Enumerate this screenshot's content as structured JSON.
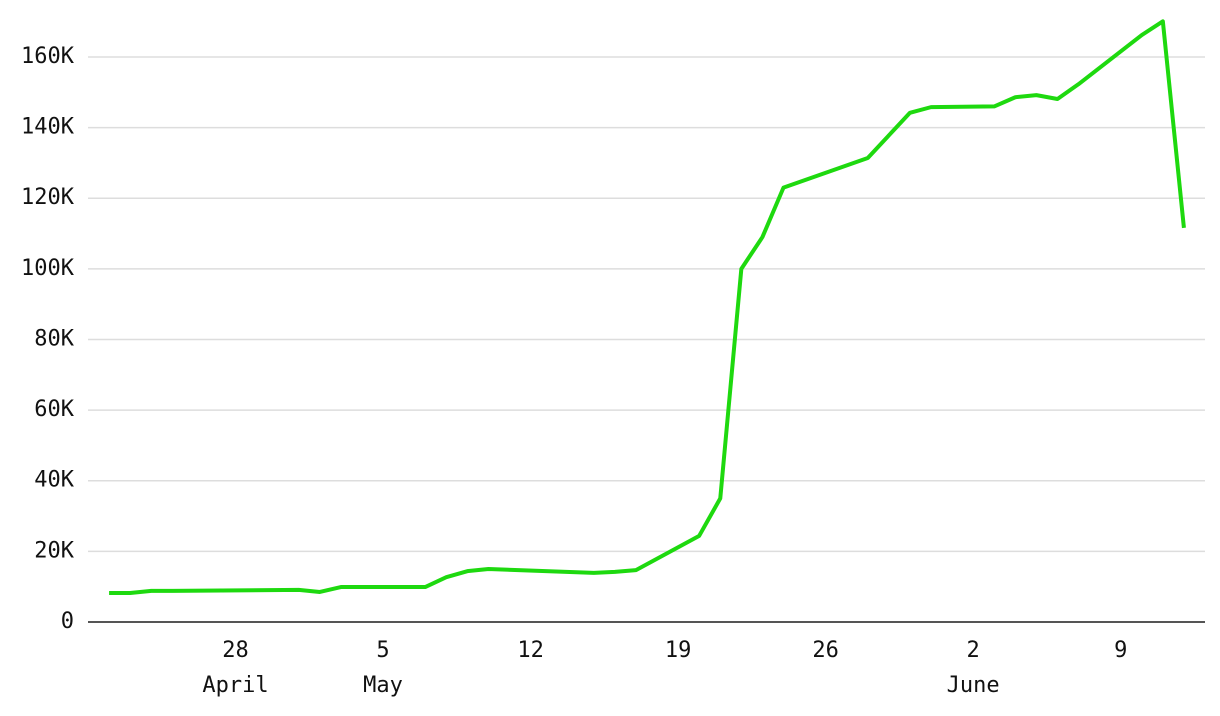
{
  "chart_data": {
    "type": "line",
    "x": [
      "April 22",
      "April 23",
      "April 24",
      "April 25",
      "May 1",
      "May 2",
      "May 3",
      "May 7",
      "May 8",
      "May 9",
      "May 10",
      "May 15",
      "May 16",
      "May 17",
      "May 20",
      "May 21",
      "May 22",
      "May 23",
      "May 24",
      "May 28",
      "May 30",
      "May 31",
      "June 3",
      "June 4",
      "June 5",
      "June 6",
      "June 7",
      "June 10",
      "June 11",
      "June 12"
    ],
    "series": [
      {
        "color": "#1ed90f",
        "values": [
          8200,
          8200,
          8800,
          8800,
          9100,
          8500,
          9900,
          9900,
          12700,
          14400,
          15000,
          13900,
          14200,
          14700,
          24400,
          35000,
          100000,
          109000,
          123000,
          131400,
          144200,
          145800,
          146000,
          148600,
          149200,
          148100,
          152300,
          166200,
          170100,
          111600
        ]
      }
    ],
    "xlim": [
      "April 21",
      "June 13"
    ],
    "xticks": [
      {
        "value": "April 28",
        "label": "28"
      },
      {
        "value": "May 5",
        "label": "5"
      },
      {
        "value": "May 12",
        "label": "12"
      },
      {
        "value": "May 19",
        "label": "19"
      },
      {
        "value": "May 26",
        "label": "26"
      },
      {
        "value": "June 2",
        "label": "2"
      },
      {
        "value": "June 9",
        "label": "9"
      }
    ],
    "x_month_labels": [
      {
        "value": "April 28",
        "label": "April"
      },
      {
        "value": "May 5",
        "label": "May"
      },
      {
        "value": "June 2",
        "label": "June"
      }
    ],
    "ylim": [
      0,
      175000
    ],
    "yticks": [
      0,
      {
        "value": 20000,
        "label": "20K"
      },
      {
        "value": 40000,
        "label": "40K"
      },
      {
        "value": 60000,
        "label": "60K"
      },
      {
        "value": 80000,
        "label": "80K"
      },
      {
        "value": 100000,
        "label": "100K"
      },
      {
        "value": 120000,
        "label": "120K"
      },
      {
        "value": 140000,
        "label": "140K"
      },
      {
        "value": 160000,
        "label": "160K"
      }
    ],
    "grid": true
  }
}
